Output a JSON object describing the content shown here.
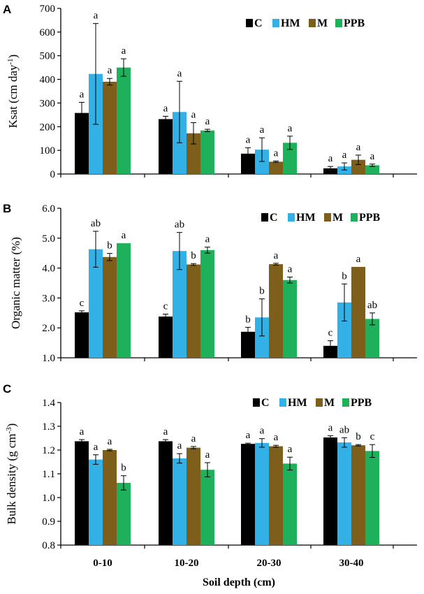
{
  "colors": {
    "C": "#000000",
    "HM": "#33b0e6",
    "M": "#7d5f1b",
    "PPB": "#1eb05a",
    "axis": "#000000"
  },
  "chart_data": [
    {
      "panel": "A",
      "type": "bar",
      "categories": [
        "0-10",
        "10-20",
        "20-30",
        "30-40"
      ],
      "ylabel": "Ksat  (cm day-1)",
      "ylabel_main": "Ksat  (cm day",
      "ylabel_sup": "-1",
      "ylabel_end": ")",
      "ylim": [
        0,
        700
      ],
      "yticks": [
        0,
        100,
        200,
        300,
        400,
        500,
        600,
        700
      ],
      "ytick_labels": [
        "0",
        "100",
        "200",
        "300",
        "400",
        "500",
        "600",
        "700"
      ],
      "legend": [
        "C",
        "HM",
        "M",
        "PPB"
      ],
      "legend_placement": "top-right",
      "series": [
        {
          "name": "C",
          "values": [
            258,
            232,
            86,
            24
          ],
          "errors": [
            45,
            12,
            25,
            8
          ],
          "letters": [
            "a",
            "a",
            "a",
            "a"
          ]
        },
        {
          "name": "HM",
          "values": [
            423,
            262,
            103,
            32
          ],
          "errors": [
            213,
            130,
            50,
            15
          ],
          "letters": [
            "a",
            "a",
            "a",
            "a"
          ]
        },
        {
          "name": "M",
          "values": [
            390,
            172,
            52,
            60
          ],
          "errors": [
            14,
            45,
            3,
            20
          ],
          "letters": [
            "a",
            "a",
            "a",
            "a"
          ]
        },
        {
          "name": "PPB",
          "values": [
            450,
            184,
            132,
            37
          ],
          "errors": [
            37,
            5,
            28,
            5
          ],
          "letters": [
            "a",
            "a",
            "a",
            "a"
          ]
        }
      ]
    },
    {
      "panel": "B",
      "type": "bar",
      "categories": [
        "0-10",
        "10-20",
        "20-30",
        "30-40"
      ],
      "ylabel": "Organic matter (%)",
      "ylim": [
        1.0,
        6.0
      ],
      "yticks": [
        1.0,
        2.0,
        3.0,
        4.0,
        5.0,
        6.0
      ],
      "ytick_labels": [
        "1.0",
        "2.0",
        "3.0",
        "4.0",
        "5.0",
        "6.0"
      ],
      "legend": [
        "C",
        "HM",
        "M",
        "PPB"
      ],
      "legend_placement": "top-right",
      "series": [
        {
          "name": "C",
          "values": [
            2.52,
            2.38,
            1.87,
            1.4
          ],
          "errors": [
            0.05,
            0.08,
            0.15,
            0.17
          ],
          "letters": [
            "c",
            "c",
            "b",
            "c"
          ]
        },
        {
          "name": "HM",
          "values": [
            4.63,
            4.57,
            2.35,
            2.85
          ],
          "errors": [
            0.6,
            0.62,
            0.62,
            0.62
          ],
          "letters": [
            "ab",
            "ab",
            "b",
            "b"
          ]
        },
        {
          "name": "M",
          "values": [
            4.37,
            4.12,
            4.13,
            4.04
          ],
          "errors": [
            0.12,
            0.03,
            0.03,
            0.0
          ],
          "letters": [
            "b",
            "b",
            "a",
            "a"
          ]
        },
        {
          "name": "PPB",
          "values": [
            4.83,
            4.6,
            3.6,
            2.3
          ],
          "errors": [
            0.0,
            0.1,
            0.1,
            0.2
          ],
          "letters": [
            "a",
            "a",
            "a",
            "ab"
          ]
        }
      ]
    },
    {
      "panel": "C",
      "type": "bar",
      "categories": [
        "0-10",
        "10-20",
        "20-30",
        "30-40"
      ],
      "xlabel": "Soil depth (cm)",
      "ylabel": "Bulk density (g cm-3)",
      "ylabel_main": "Bulk density (g cm",
      "ylabel_sup": "-3",
      "ylabel_end": ")",
      "ylim": [
        0.8,
        1.4
      ],
      "yticks": [
        0.8,
        0.9,
        1.0,
        1.1,
        1.2,
        1.3,
        1.4
      ],
      "ytick_labels": [
        "0.8",
        "0.9",
        "1.0",
        "1.1",
        "1.2",
        "1.3",
        "1.4"
      ],
      "legend": [
        "C",
        "HM",
        "M",
        "PPB"
      ],
      "legend_placement": "top-right",
      "series": [
        {
          "name": "C",
          "values": [
            1.237,
            1.237,
            1.226,
            1.253
          ],
          "errors": [
            0.007,
            0.007,
            0.003,
            0.007
          ],
          "letters": [
            "a",
            "a",
            "a",
            "a"
          ]
        },
        {
          "name": "HM",
          "values": [
            1.16,
            1.165,
            1.23,
            1.232
          ],
          "errors": [
            0.02,
            0.02,
            0.018,
            0.02
          ],
          "letters": [
            "a",
            "a",
            "a",
            "ab"
          ]
        },
        {
          "name": "M",
          "values": [
            1.2,
            1.21,
            1.216,
            1.22
          ],
          "errors": [
            0.003,
            0.005,
            0.004,
            0.003
          ],
          "letters": [
            "a",
            "a",
            "a",
            "b"
          ]
        },
        {
          "name": "PPB",
          "values": [
            1.062,
            1.117,
            1.143,
            1.196
          ],
          "errors": [
            0.03,
            0.03,
            0.027,
            0.027
          ],
          "letters": [
            "b",
            "a",
            "a",
            "c"
          ]
        }
      ]
    }
  ]
}
